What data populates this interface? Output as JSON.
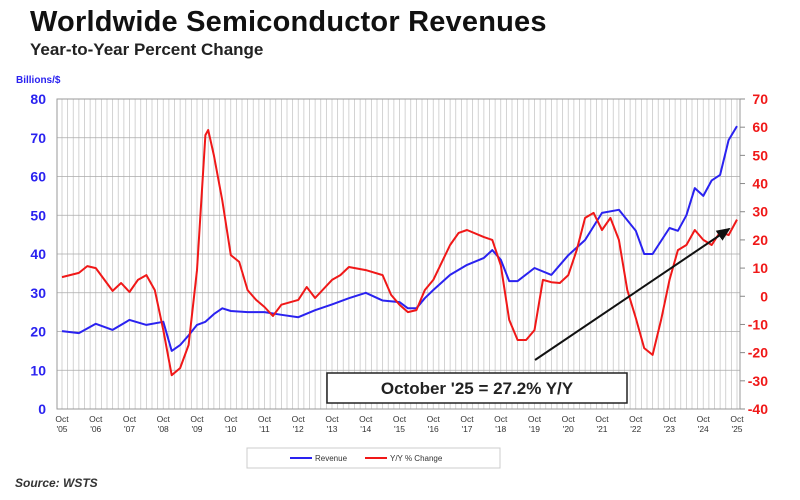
{
  "title": "Worldwide Semiconductor Revenues",
  "subtitle": "Year-to-Year Percent Change",
  "source": "Source: WSTS",
  "chart_data": {
    "type": "line",
    "title": "Worldwide Semiconductor Revenues",
    "subtitle": "Year-to-Year Percent Change",
    "ylabel_left": "Billions/$",
    "ylim_left": [
      0,
      80
    ],
    "yticks_left": [
      "0",
      "10",
      "20",
      "30",
      "40",
      "50",
      "60",
      "70",
      "80"
    ],
    "ylim_right": [
      -40,
      70
    ],
    "yticks_right": [
      "-40",
      "-30",
      "-20",
      "-10",
      "0",
      "10",
      "20",
      "30",
      "40",
      "50",
      "60",
      "70"
    ],
    "xlim": [
      "2005-10",
      "2025-10"
    ],
    "xticks": [
      [
        "Oct",
        "'05"
      ],
      [
        "Oct",
        "'06"
      ],
      [
        "Oct",
        "'07"
      ],
      [
        "Oct",
        "'08"
      ],
      [
        "Oct",
        "'09"
      ],
      [
        "Oct",
        "'10"
      ],
      [
        "Oct",
        "'11"
      ],
      [
        "Oct",
        "'12"
      ],
      [
        "Oct",
        "'13"
      ],
      [
        "Oct",
        "'14"
      ],
      [
        "Oct",
        "'15"
      ],
      [
        "Oct",
        "'16"
      ],
      [
        "Oct",
        "'17"
      ],
      [
        "Oct",
        "'18"
      ],
      [
        "Oct",
        "'19"
      ],
      [
        "Oct",
        "'20"
      ],
      [
        "Oct",
        "'21"
      ],
      [
        "Oct",
        "'22"
      ],
      [
        "Oct",
        "'23"
      ],
      [
        "Oct",
        "'24"
      ],
      [
        "Oct",
        "'25"
      ]
    ],
    "grid": true,
    "legend_placement": "bottom",
    "annotation": "October '25 = 27.2% Y/Y",
    "colors": {
      "revenue": "#2a22f0",
      "yoy": "#f01818",
      "arrow": "#111111"
    },
    "series": [
      {
        "name": "Revenue",
        "axis": "left",
        "points": [
          [
            "2005-10",
            20.1
          ],
          [
            "2006-04",
            19.6
          ],
          [
            "2006-10",
            22
          ],
          [
            "2007-04",
            20.4
          ],
          [
            "2007-10",
            23
          ],
          [
            "2008-04",
            21.7
          ],
          [
            "2008-10",
            22.5
          ],
          [
            "2009-01",
            15
          ],
          [
            "2009-04",
            16.5
          ],
          [
            "2009-07",
            19
          ],
          [
            "2009-10",
            21.7
          ],
          [
            "2010-01",
            22.5
          ],
          [
            "2010-04",
            24.5
          ],
          [
            "2010-07",
            26
          ],
          [
            "2010-10",
            25.3
          ],
          [
            "2011-04",
            25
          ],
          [
            "2011-10",
            25
          ],
          [
            "2012-04",
            24.3
          ],
          [
            "2012-10",
            23.7
          ],
          [
            "2013-04",
            25.5
          ],
          [
            "2013-10",
            27
          ],
          [
            "2014-04",
            28.6
          ],
          [
            "2014-10",
            30
          ],
          [
            "2015-04",
            28
          ],
          [
            "2015-10",
            27.6
          ],
          [
            "2016-01",
            26
          ],
          [
            "2016-04",
            26
          ],
          [
            "2016-07",
            28.6
          ],
          [
            "2016-10",
            30.7
          ],
          [
            "2017-04",
            34.6
          ],
          [
            "2017-10",
            37.2
          ],
          [
            "2018-04",
            39
          ],
          [
            "2018-07",
            41
          ],
          [
            "2018-10",
            38.5
          ],
          [
            "2019-01",
            33
          ],
          [
            "2019-04",
            33
          ],
          [
            "2019-10",
            36.4
          ],
          [
            "2020-04",
            34.6
          ],
          [
            "2020-10",
            39.7
          ],
          [
            "2021-04",
            43.6
          ],
          [
            "2021-10",
            50.6
          ],
          [
            "2022-04",
            51.4
          ],
          [
            "2022-10",
            46
          ],
          [
            "2023-01",
            40
          ],
          [
            "2023-04",
            40
          ],
          [
            "2023-10",
            46.7
          ],
          [
            "2024-01",
            46
          ],
          [
            "2024-04",
            50
          ],
          [
            "2024-07",
            57
          ],
          [
            "2024-10",
            55
          ],
          [
            "2025-01",
            59
          ],
          [
            "2025-04",
            60.4
          ],
          [
            "2025-07",
            69.4
          ],
          [
            "2025-10",
            73
          ]
        ]
      },
      {
        "name": "Y/Y % Change",
        "axis": "right",
        "points": [
          [
            "2005-10",
            6.8
          ],
          [
            "2006-04",
            8.3
          ],
          [
            "2006-07",
            10.7
          ],
          [
            "2006-10",
            10
          ],
          [
            "2007-04",
            1.9
          ],
          [
            "2007-07",
            4.7
          ],
          [
            "2007-10",
            1.5
          ],
          [
            "2008-01",
            5.8
          ],
          [
            "2008-04",
            7.5
          ],
          [
            "2008-07",
            2.2
          ],
          [
            "2008-10",
            -12
          ],
          [
            "2009-01",
            -28
          ],
          [
            "2009-04",
            -25.5
          ],
          [
            "2009-07",
            -17.3
          ],
          [
            "2009-10",
            9.3
          ],
          [
            "2010-01",
            57.2
          ],
          [
            "2010-02",
            59
          ],
          [
            "2010-04",
            50
          ],
          [
            "2010-07",
            34
          ],
          [
            "2010-10",
            14.6
          ],
          [
            "2011-01",
            12.2
          ],
          [
            "2011-04",
            2.2
          ],
          [
            "2011-07",
            -1.3
          ],
          [
            "2011-10",
            -3.8
          ],
          [
            "2012-01",
            -7
          ],
          [
            "2012-04",
            -3
          ],
          [
            "2012-10",
            -1.3
          ],
          [
            "2013-01",
            3.3
          ],
          [
            "2013-04",
            -0.6
          ],
          [
            "2013-10",
            5.8
          ],
          [
            "2014-01",
            7.5
          ],
          [
            "2014-04",
            10.4
          ],
          [
            "2014-10",
            9.3
          ],
          [
            "2015-04",
            7.5
          ],
          [
            "2015-07",
            0.5
          ],
          [
            "2015-10",
            -3
          ],
          [
            "2016-01",
            -5.6
          ],
          [
            "2016-04",
            -4.9
          ],
          [
            "2016-07",
            2.2
          ],
          [
            "2016-10",
            5.8
          ],
          [
            "2017-04",
            18.2
          ],
          [
            "2017-07",
            22.5
          ],
          [
            "2017-10",
            23.5
          ],
          [
            "2018-04",
            21
          ],
          [
            "2018-07",
            20
          ],
          [
            "2018-10",
            11
          ],
          [
            "2019-01",
            -8.4
          ],
          [
            "2019-04",
            -15.5
          ],
          [
            "2019-07",
            -15.5
          ],
          [
            "2019-10",
            -12
          ],
          [
            "2020-01",
            5.8
          ],
          [
            "2020-04",
            5
          ],
          [
            "2020-07",
            4.7
          ],
          [
            "2020-10",
            7.5
          ],
          [
            "2021-01",
            16.4
          ],
          [
            "2021-04",
            27.8
          ],
          [
            "2021-07",
            29.6
          ],
          [
            "2021-10",
            23.5
          ],
          [
            "2022-01",
            27.8
          ],
          [
            "2022-04",
            20
          ],
          [
            "2022-07",
            2.2
          ],
          [
            "2022-10",
            -7.7
          ],
          [
            "2023-01",
            -18.4
          ],
          [
            "2023-04",
            -20.8
          ],
          [
            "2023-07",
            -8.4
          ],
          [
            "2023-10",
            5.8
          ],
          [
            "2024-01",
            16.4
          ],
          [
            "2024-04",
            18.2
          ],
          [
            "2024-07",
            23.5
          ],
          [
            "2024-10",
            20
          ],
          [
            "2025-01",
            18.2
          ],
          [
            "2025-04",
            22.8
          ],
          [
            "2025-07",
            21.7
          ],
          [
            "2025-10",
            27.2
          ]
        ]
      }
    ]
  }
}
